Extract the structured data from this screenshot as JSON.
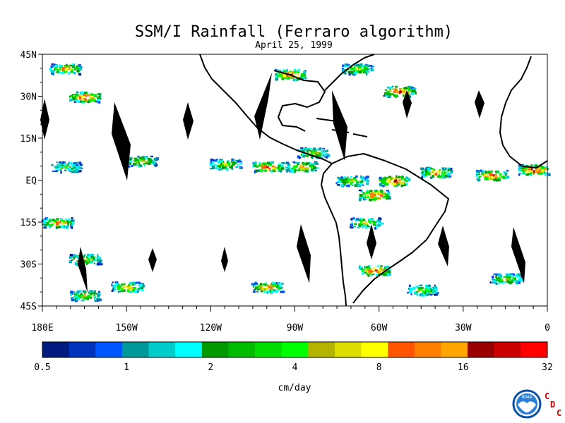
{
  "title": "SSM/I Rainfall (Ferraro algorithm)",
  "subtitle": "April 25, 1999",
  "lat_labels": [
    "45N",
    "30N",
    "15N",
    "EQ",
    "15S",
    "30S",
    "45S"
  ],
  "lon_labels": [
    "180E",
    "150W",
    "120W",
    "90W",
    "60W",
    "30W",
    "0"
  ],
  "colorbar": {
    "colors": [
      "#001a80",
      "#0033bb",
      "#0055ff",
      "#009999",
      "#00cccc",
      "#00ffff",
      "#009900",
      "#00bb00",
      "#00dd00",
      "#00ff00",
      "#b3b300",
      "#dddd00",
      "#ffff00",
      "#ff5500",
      "#ff8000",
      "#ffa500",
      "#990000",
      "#cc0000",
      "#ff0000"
    ],
    "tick_labels": [
      "0.5",
      "1",
      "2",
      "4",
      "8",
      "16",
      "32"
    ],
    "unit": "cm/day"
  },
  "logo": {
    "text": "NOAA",
    "letters": [
      "C",
      "D",
      "C"
    ]
  },
  "map_data": {
    "region": {
      "lon_range": [
        -180,
        0
      ],
      "lat_range": [
        -45,
        45
      ]
    },
    "rain_bands": [
      {
        "lon": -172,
        "lat": 40,
        "intensity": 2.5
      },
      {
        "lon": -165,
        "lat": 30,
        "intensity": 3
      },
      {
        "lon": -172,
        "lat": 5,
        "intensity": 1.5
      },
      {
        "lon": -145,
        "lat": 7,
        "intensity": 2
      },
      {
        "lon": -115,
        "lat": 6,
        "intensity": 2
      },
      {
        "lon": -100,
        "lat": 5,
        "intensity": 3
      },
      {
        "lon": -88,
        "lat": 5,
        "intensity": 2.5
      },
      {
        "lon": -84,
        "lat": 10,
        "intensity": 2
      },
      {
        "lon": -92,
        "lat": 38,
        "intensity": 3
      },
      {
        "lon": -68,
        "lat": 40,
        "intensity": 2
      },
      {
        "lon": -53,
        "lat": 32,
        "intensity": 3
      },
      {
        "lon": -70,
        "lat": 0,
        "intensity": 2
      },
      {
        "lon": -62,
        "lat": -5,
        "intensity": 3
      },
      {
        "lon": -55,
        "lat": 0,
        "intensity": 3
      },
      {
        "lon": -65,
        "lat": -15,
        "intensity": 2
      },
      {
        "lon": -40,
        "lat": 3,
        "intensity": 2.5
      },
      {
        "lon": -20,
        "lat": 2,
        "intensity": 3
      },
      {
        "lon": -5,
        "lat": 4,
        "intensity": 3.2
      },
      {
        "lon": -175,
        "lat": -15,
        "intensity": 2.5
      },
      {
        "lon": -165,
        "lat": -28,
        "intensity": 2
      },
      {
        "lon": -150,
        "lat": -38,
        "intensity": 2.5
      },
      {
        "lon": -165,
        "lat": -41,
        "intensity": 2
      },
      {
        "lon": -100,
        "lat": -38,
        "intensity": 2.5
      },
      {
        "lon": -62,
        "lat": -32,
        "intensity": 3
      },
      {
        "lon": -45,
        "lat": -39,
        "intensity": 2
      },
      {
        "lon": -15,
        "lat": -35,
        "intensity": 2
      }
    ]
  }
}
